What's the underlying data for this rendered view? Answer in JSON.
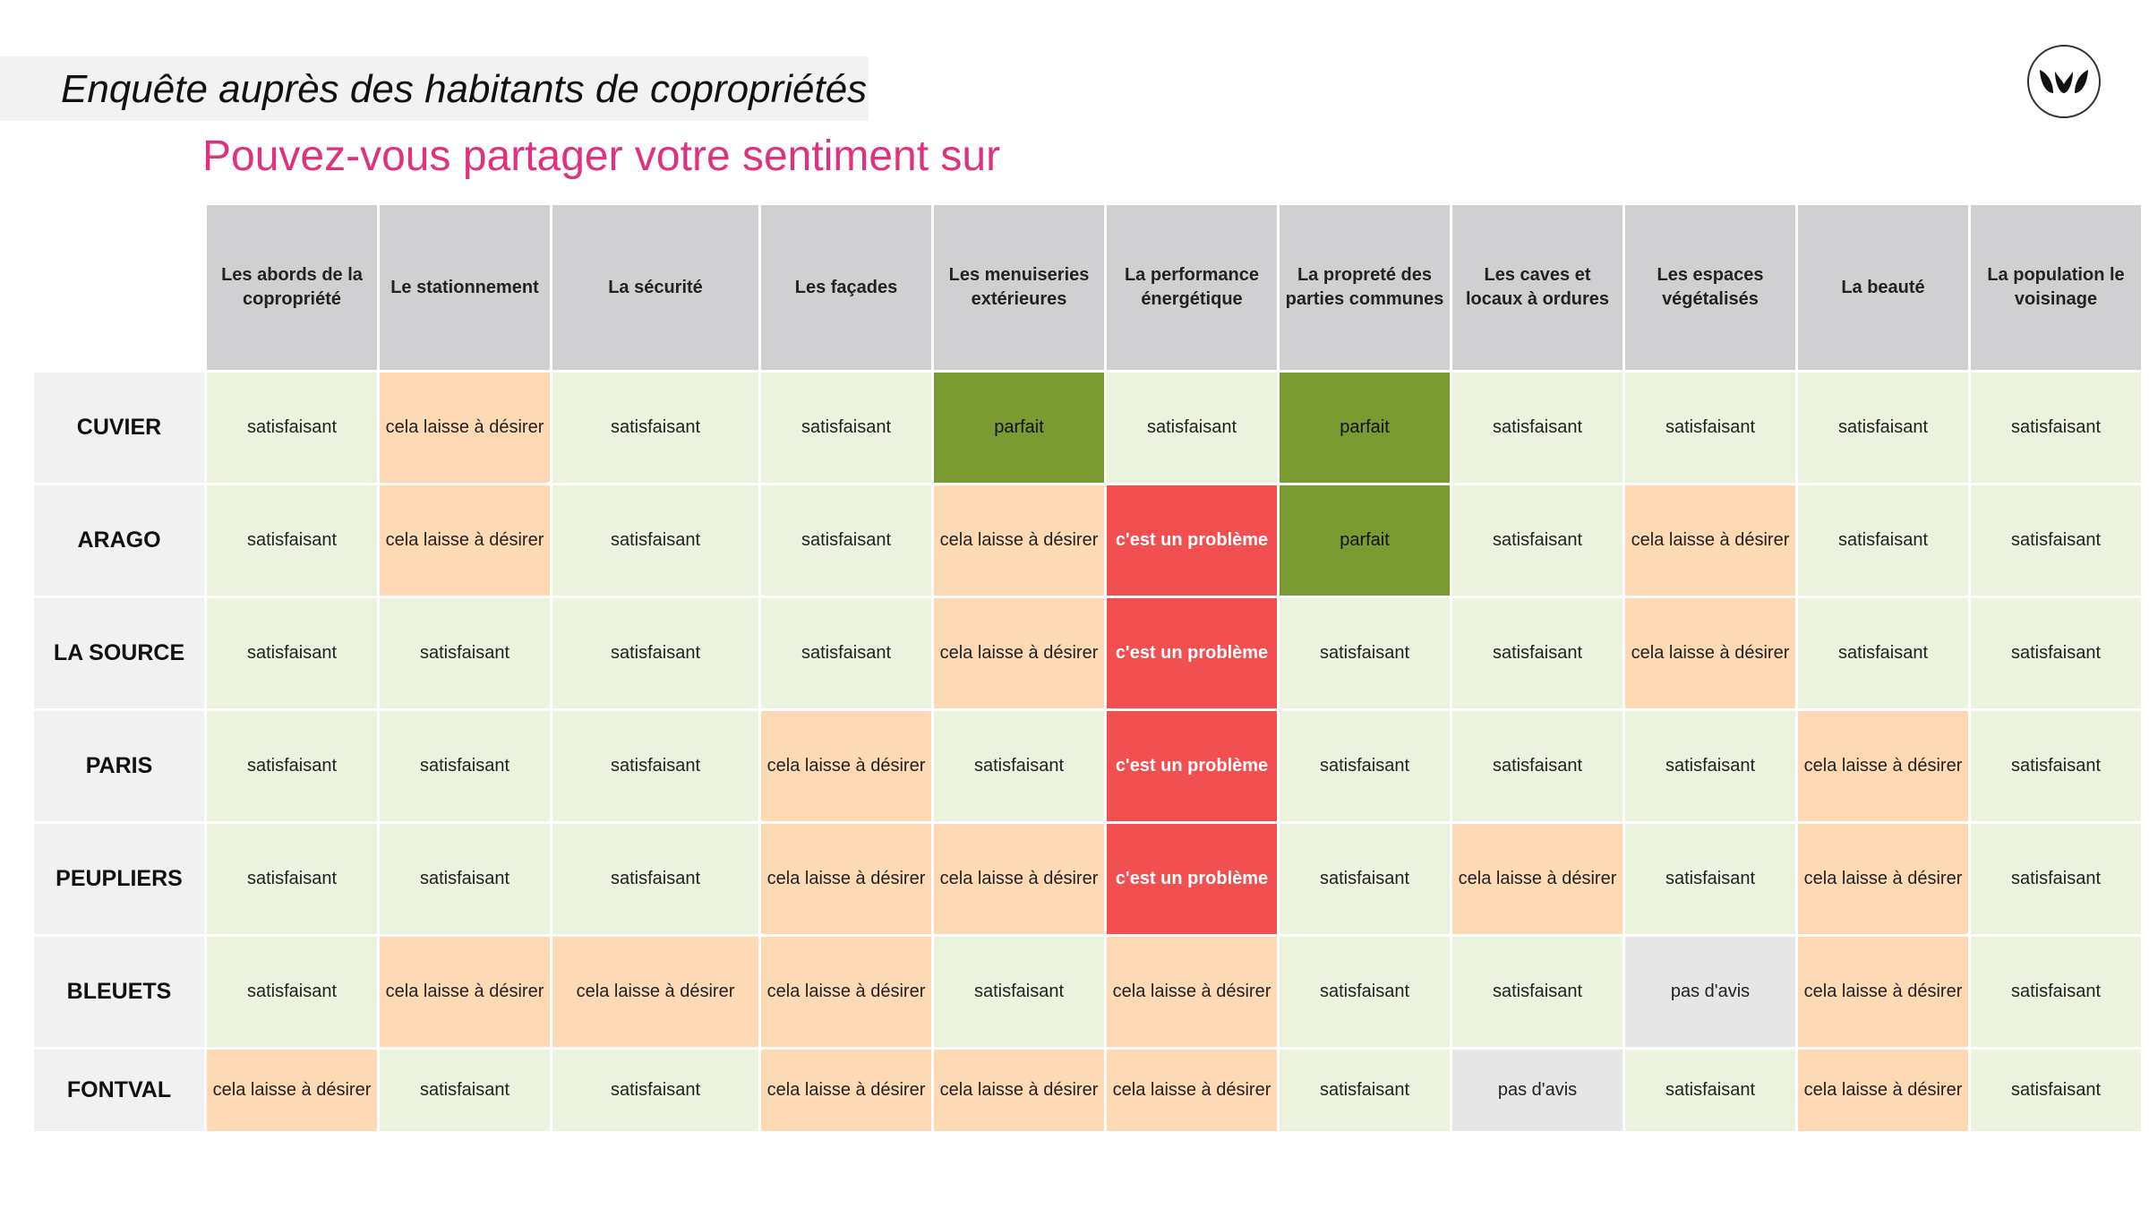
{
  "header": {
    "title": "Enquête auprès des habitants de copropriétés",
    "subtitle": "Pouvez-vous partager votre sentiment sur"
  },
  "logo": {
    "icon": "leaves-logo-icon"
  },
  "colors": {
    "satisfaisant": "#ebf2de",
    "cela laisse à désirer": "#fdd9b5",
    "parfait": "#7a9b32",
    "c'est un problème": "#f24f50",
    "pas d'avis": "#e6e6e6",
    "accent": "#e0317f"
  },
  "table": {
    "columns": [
      "Les abords de la copropriété",
      "Le stationnement",
      "La sécurité",
      "Les façades",
      "Les menuiseries extérieures",
      "La performance énergétique",
      "La propreté des parties communes",
      "Les caves et locaux à ordures",
      "Les espaces végétalisés",
      "La beauté",
      "La population le voisinage"
    ],
    "rows": [
      {
        "name": "CUVIER",
        "cells": [
          "satisfaisant",
          "cela laisse à désirer",
          "satisfaisant",
          "satisfaisant",
          "parfait",
          "satisfaisant",
          "parfait",
          "satisfaisant",
          "satisfaisant",
          "satisfaisant",
          "satisfaisant"
        ]
      },
      {
        "name": "ARAGO",
        "cells": [
          "satisfaisant",
          "cela laisse à désirer",
          "satisfaisant",
          "satisfaisant",
          "cela laisse à désirer",
          "c'est un problème",
          "parfait",
          "satisfaisant",
          "cela laisse à désirer",
          "satisfaisant",
          "satisfaisant"
        ]
      },
      {
        "name": "LA SOURCE",
        "cells": [
          "satisfaisant",
          "satisfaisant",
          "satisfaisant",
          "satisfaisant",
          "cela laisse à désirer",
          "c'est un problème",
          "satisfaisant",
          "satisfaisant",
          "cela laisse à désirer",
          "satisfaisant",
          "satisfaisant"
        ]
      },
      {
        "name": "PARIS",
        "cells": [
          "satisfaisant",
          "satisfaisant",
          "satisfaisant",
          "cela laisse à désirer",
          "satisfaisant",
          "c'est un problème",
          "satisfaisant",
          "satisfaisant",
          "satisfaisant",
          "cela laisse à désirer",
          "satisfaisant"
        ]
      },
      {
        "name": "PEUPLIERS",
        "cells": [
          "satisfaisant",
          "satisfaisant",
          "satisfaisant",
          "cela laisse à désirer",
          "cela laisse à désirer",
          "c'est un problème",
          "satisfaisant",
          "cela laisse à désirer",
          "satisfaisant",
          "cela laisse à désirer",
          "satisfaisant"
        ]
      },
      {
        "name": "BLEUETS",
        "cells": [
          "satisfaisant",
          "cela laisse à désirer",
          "cela laisse à désirer",
          "cela laisse à désirer",
          "satisfaisant",
          "cela laisse à désirer",
          "satisfaisant",
          "satisfaisant",
          "pas d'avis",
          "cela laisse à désirer",
          "satisfaisant"
        ]
      },
      {
        "name": "FONTVAL",
        "cells": [
          "cela laisse à désirer",
          "satisfaisant",
          "satisfaisant",
          "cela laisse à désirer",
          "cela laisse à désirer",
          "cela laisse à désirer",
          "satisfaisant",
          "pas d'avis",
          "satisfaisant",
          "cela laisse à désirer",
          "satisfaisant"
        ]
      }
    ]
  }
}
